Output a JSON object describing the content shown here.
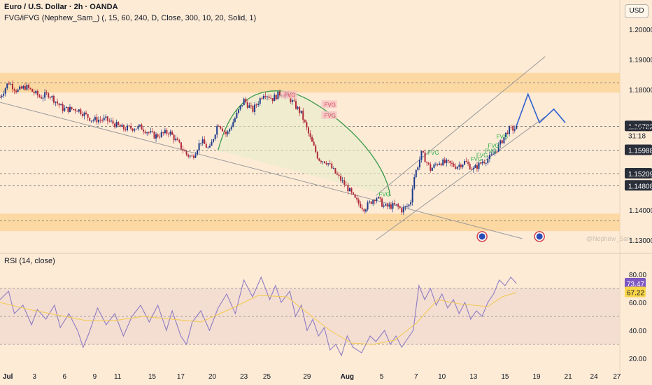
{
  "header": {
    "symbol_line": "Euro / U.S. Dollar · 2h · OANDA",
    "indicator_line": "FVG/iFVG (Nephew_Sam_) (, 15, 60, 240, D, Close, 300, 10, 20, Solid, 1)",
    "currency_button": "USD"
  },
  "rsi_panel": {
    "title": "RSI (14, close)"
  },
  "watermark": "@Nephew_Sam_",
  "colors": {
    "background": "#fdebd6",
    "bull": "#1e3a8a",
    "bear": "#b0293a",
    "zone": "#fcd59a",
    "rsi_line": "#8e7cc3",
    "rsi_ma": "#f2c94c",
    "channel": "#9a9a9a",
    "arc": "#3a9a4a",
    "projection": "#2f5fd0"
  },
  "chart_data": [
    {
      "type": "candlestick",
      "title": "Euro / U.S. Dollar · 2h · OANDA",
      "ylim": [
        1.128,
        1.206
      ],
      "y_ticks": [
        "1.20000",
        "1.19000",
        "1.18000",
        "1.14000",
        "1.13000"
      ],
      "x_ticks": [
        "Jul",
        "3",
        "6",
        "9",
        "11",
        "15",
        "17",
        "20",
        "23",
        "25",
        "29",
        "Aug",
        "5",
        "7",
        "10",
        "13",
        "15",
        "19",
        "21",
        "24",
        "27"
      ],
      "price_labels": [
        {
          "text": "1.16782",
          "value": 1.16782,
          "style": "dark"
        },
        {
          "text": "1.16722",
          "value": 1.16722,
          "style": "plain"
        },
        {
          "text": "31:18",
          "value": 1.16472,
          "style": "plain"
        },
        {
          "text": "1.15988",
          "value": 1.15988,
          "style": "dark"
        },
        {
          "text": "1.15209",
          "value": 1.15209,
          "style": "dark"
        },
        {
          "text": "1.14808",
          "value": 1.14808,
          "style": "dark"
        }
      ],
      "horizontal_levels": [
        1.1823,
        1.1678,
        1.1599,
        1.1521,
        1.1481,
        1.1364
      ],
      "zones": [
        {
          "from": 1.179,
          "to": 1.1856
        },
        {
          "from": 1.133,
          "to": 1.1388
        }
      ],
      "price_path": [
        [
          0,
          1.1775
        ],
        [
          6,
          1.1825
        ],
        [
          12,
          1.1795
        ],
        [
          18,
          1.181
        ],
        [
          28,
          1.1775
        ],
        [
          34,
          1.1785
        ],
        [
          44,
          1.1735
        ],
        [
          54,
          1.1735
        ],
        [
          64,
          1.17
        ],
        [
          74,
          1.17
        ],
        [
          86,
          1.167
        ],
        [
          98,
          1.1675
        ],
        [
          108,
          1.1645
        ],
        [
          118,
          1.166
        ],
        [
          130,
          1.1585
        ],
        [
          134,
          1.1575
        ],
        [
          140,
          1.163
        ],
        [
          146,
          1.16
        ],
        [
          152,
          1.169
        ],
        [
          158,
          1.165
        ],
        [
          170,
          1.1765
        ],
        [
          176,
          1.173
        ],
        [
          184,
          1.179
        ],
        [
          190,
          1.177
        ],
        [
          196,
          1.179
        ],
        [
          202,
          1.177
        ],
        [
          210,
          1.172
        ],
        [
          216,
          1.164
        ],
        [
          222,
          1.157
        ],
        [
          228,
          1.156
        ],
        [
          234,
          1.152
        ],
        [
          242,
          1.1475
        ],
        [
          248,
          1.143
        ],
        [
          254,
          1.1405
        ],
        [
          262,
          1.1445
        ],
        [
          268,
          1.141
        ],
        [
          276,
          1.1415
        ],
        [
          280,
          1.14
        ],
        [
          286,
          1.142
        ],
        [
          288,
          1.15
        ],
        [
          294,
          1.159
        ],
        [
          300,
          1.1535
        ],
        [
          306,
          1.156
        ],
        [
          312,
          1.1555
        ],
        [
          318,
          1.1545
        ],
        [
          324,
          1.156
        ],
        [
          330,
          1.1535
        ],
        [
          336,
          1.156
        ],
        [
          342,
          1.1575
        ],
        [
          348,
          1.1615
        ],
        [
          354,
          1.1665
        ],
        [
          360,
          1.1672
        ]
      ],
      "projection_path": [
        [
          360,
          1.168
        ],
        [
          368,
          1.1785
        ],
        [
          376,
          1.169
        ],
        [
          386,
          1.1735
        ],
        [
          394,
          1.169
        ]
      ],
      "fvg_labels": [
        {
          "text": "FVG",
          "x": 198,
          "y": 1.178,
          "tone": "bear"
        },
        {
          "text": "FVG",
          "x": 226,
          "y": 1.1748,
          "tone": "bear"
        },
        {
          "text": "FVG",
          "x": 226,
          "y": 1.1712,
          "tone": "bear"
        },
        {
          "text": "FVG",
          "x": 264,
          "y": 1.145,
          "tone": "bull"
        },
        {
          "text": "FVG",
          "x": 298,
          "y": 1.1588,
          "tone": "bull"
        },
        {
          "text": "FVG",
          "x": 346,
          "y": 1.1642,
          "tone": "bull"
        },
        {
          "text": "FVG",
          "x": 340,
          "y": 1.1612,
          "tone": "bull"
        },
        {
          "text": "FVG",
          "x": 338,
          "y": 1.1594,
          "tone": "bull"
        },
        {
          "text": "FVG",
          "x": 332,
          "y": 1.158,
          "tone": "bull"
        },
        {
          "text": "FVG",
          "x": 328,
          "y": 1.1568,
          "tone": "bull"
        }
      ],
      "trendline": {
        "from": [
          0,
          1.1758
        ],
        "to": [
          364,
          1.1305
        ]
      },
      "channel": {
        "upper": {
          "from": [
            262,
            1.1448
          ],
          "to": [
            380,
            1.191
          ]
        },
        "lower": {
          "from": [
            262,
            1.13
          ],
          "to": [
            380,
            1.171
          ]
        }
      },
      "arc": {
        "from": [
          152,
          1.1598
        ],
        "peak": [
          200,
          1.1793
        ],
        "to": [
          272,
          1.1446
        ]
      },
      "event_markers": [
        {
          "x": 336,
          "y": 1.1312
        },
        {
          "x": 376,
          "y": 1.1312
        }
      ]
    },
    {
      "type": "line",
      "title": "RSI (14, close)",
      "ylim": [
        15,
        85
      ],
      "y_ticks": [
        "80.00",
        "60.00",
        "40.00",
        "20.00"
      ],
      "band": [
        30,
        70
      ],
      "middle": 50,
      "current_labels": [
        {
          "text": "73.47",
          "value": 73.47,
          "color": "#7e57c2"
        },
        {
          "text": "67.22",
          "value": 67.22,
          "color": "#f9d648"
        }
      ],
      "series": [
        {
          "role": "rsi",
          "points": [
            [
              0,
              62
            ],
            [
              6,
              68
            ],
            [
              10,
              52
            ],
            [
              16,
              58
            ],
            [
              22,
              44
            ],
            [
              26,
              55
            ],
            [
              32,
              48
            ],
            [
              38,
              58
            ],
            [
              42,
              42
            ],
            [
              48,
              52
            ],
            [
              54,
              40
            ],
            [
              58,
              28
            ],
            [
              62,
              38
            ],
            [
              68,
              56
            ],
            [
              74,
              44
            ],
            [
              80,
              52
            ],
            [
              86,
              36
            ],
            [
              92,
              50
            ],
            [
              98,
              58
            ],
            [
              104,
              46
            ],
            [
              110,
              58
            ],
            [
              116,
              40
            ],
            [
              120,
              54
            ],
            [
              126,
              36
            ],
            [
              130,
              30
            ],
            [
              134,
              46
            ],
            [
              140,
              54
            ],
            [
              146,
              40
            ],
            [
              152,
              56
            ],
            [
              158,
              66
            ],
            [
              164,
              52
            ],
            [
              170,
              76
            ],
            [
              176,
              64
            ],
            [
              182,
              78
            ],
            [
              188,
              62
            ],
            [
              192,
              72
            ],
            [
              196,
              60
            ],
            [
              202,
              68
            ],
            [
              206,
              50
            ],
            [
              210,
              58
            ],
            [
              214,
              40
            ],
            [
              218,
              48
            ],
            [
              222,
              36
            ],
            [
              226,
              42
            ],
            [
              230,
              26
            ],
            [
              234,
              30
            ],
            [
              238,
              22
            ],
            [
              242,
              36
            ],
            [
              246,
              28
            ],
            [
              252,
              24
            ],
            [
              258,
              36
            ],
            [
              262,
              32
            ],
            [
              268,
              40
            ],
            [
              272,
              30
            ],
            [
              276,
              36
            ],
            [
              280,
              28
            ],
            [
              284,
              34
            ],
            [
              288,
              40
            ],
            [
              292,
              72
            ],
            [
              296,
              62
            ],
            [
              300,
              70
            ],
            [
              304,
              58
            ],
            [
              308,
              66
            ],
            [
              312,
              56
            ],
            [
              316,
              62
            ],
            [
              320,
              52
            ],
            [
              324,
              60
            ],
            [
              328,
              48
            ],
            [
              332,
              54
            ],
            [
              336,
              50
            ],
            [
              340,
              60
            ],
            [
              344,
              66
            ],
            [
              348,
              76
            ],
            [
              352,
              72
            ],
            [
              356,
              78
            ],
            [
              360,
              73.5
            ]
          ]
        },
        {
          "role": "ma",
          "points": [
            [
              0,
              60
            ],
            [
              20,
              55
            ],
            [
              40,
              51
            ],
            [
              60,
              47
            ],
            [
              80,
              47
            ],
            [
              100,
              50
            ],
            [
              120,
              48
            ],
            [
              140,
              46
            ],
            [
              160,
              55
            ],
            [
              180,
              65
            ],
            [
              200,
              64
            ],
            [
              215,
              52
            ],
            [
              230,
              40
            ],
            [
              245,
              31
            ],
            [
              260,
              30
            ],
            [
              275,
              33
            ],
            [
              290,
              45
            ],
            [
              305,
              62
            ],
            [
              320,
              59
            ],
            [
              340,
              57
            ],
            [
              350,
              64
            ],
            [
              360,
              67.2
            ]
          ]
        }
      ]
    }
  ]
}
